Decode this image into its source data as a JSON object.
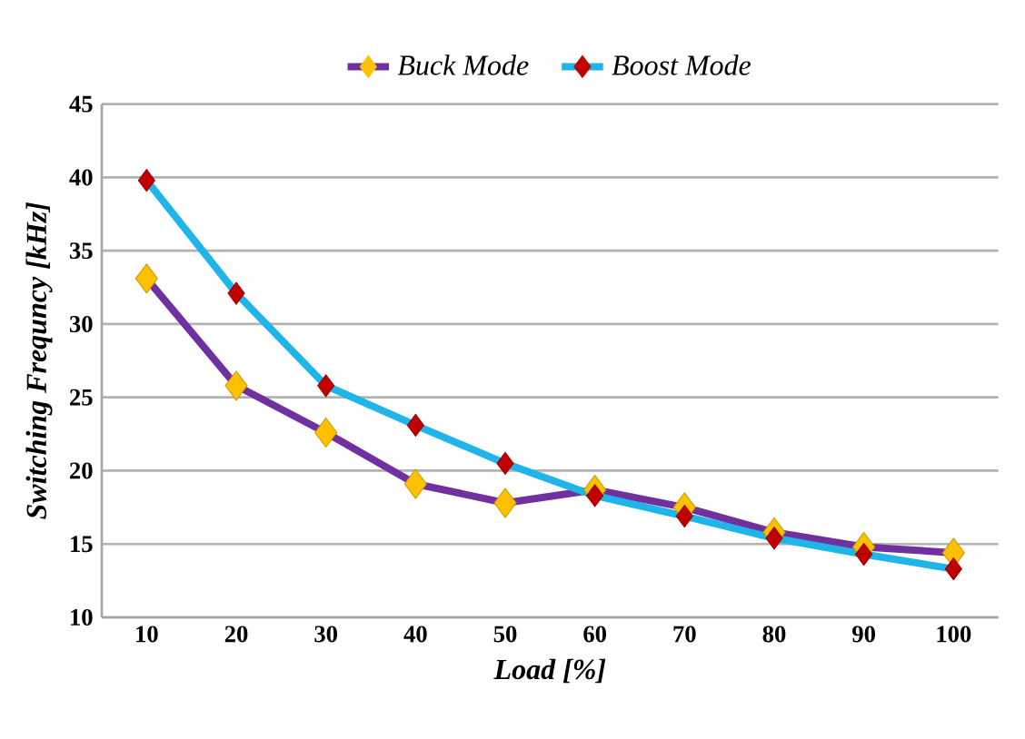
{
  "chart_data": {
    "type": "line",
    "xlabel": "Load [%]",
    "ylabel": "Switching Frequncy [kHz]",
    "categories": [
      "10",
      "20",
      "30",
      "40",
      "50",
      "60",
      "70",
      "80",
      "90",
      "100"
    ],
    "series": [
      {
        "name": "Buck Mode",
        "color": "#7030a0",
        "colors": [
          "#ffc000",
          "#ffc000",
          "#ffc000",
          "#ffc000",
          "#ffc000",
          "#ffc000",
          "#ffc000",
          "#ffc000",
          "#ffc000",
          "#ffc000"
        ],
        "values": [
          33.1,
          25.8,
          22.6,
          19.1,
          17.8,
          18.7,
          17.5,
          15.8,
          14.8,
          14.4
        ]
      },
      {
        "name": "Boost Mode",
        "color": "#1fb5e8",
        "colors": [
          "#c00000",
          "#c00000",
          "#c00000",
          "#c00000",
          "#c00000",
          "#c00000",
          "#c00000",
          "#c00000",
          "#c00000",
          "#c00000"
        ],
        "values": [
          39.8,
          32.1,
          25.8,
          23.1,
          20.5,
          18.3,
          16.9,
          15.4,
          14.3,
          13.3
        ]
      }
    ],
    "ylim": [
      10,
      45
    ],
    "yticks": [
      10,
      15,
      20,
      25,
      30,
      35,
      40,
      45
    ],
    "grid": "y",
    "legend": "top",
    "marker": "diamond",
    "line_style": "solid"
  }
}
